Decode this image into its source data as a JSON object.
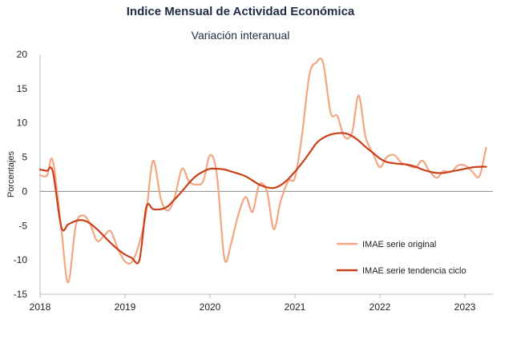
{
  "chart_data": {
    "type": "line",
    "title": "Indice Mensual de  Actividad Económica",
    "subtitle": "Variación interanual",
    "ylabel": "Porcentajes",
    "xlabel": "",
    "ylim": [
      -15,
      20
    ],
    "yticks": [
      20,
      15,
      10,
      5,
      0,
      -5,
      -10,
      -15
    ],
    "xlim": [
      2018,
      2023.33
    ],
    "xticks": [
      2018,
      2019,
      2020,
      2021,
      2022,
      2023
    ],
    "grid": false,
    "legend_position": "bottom-right",
    "series": [
      {
        "name": "IMAE serie original",
        "color": "#f4a582",
        "points": [
          [
            2018.0,
            2.4
          ],
          [
            2018.08,
            2.3
          ],
          [
            2018.15,
            4.5
          ],
          [
            2018.25,
            -5.5
          ],
          [
            2018.33,
            -13.3
          ],
          [
            2018.42,
            -5.0
          ],
          [
            2018.5,
            -3.5
          ],
          [
            2018.58,
            -4.5
          ],
          [
            2018.67,
            -7.2
          ],
          [
            2018.75,
            -6.5
          ],
          [
            2018.83,
            -5.8
          ],
          [
            2018.92,
            -8.5
          ],
          [
            2019.0,
            -10.2
          ],
          [
            2019.08,
            -10.3
          ],
          [
            2019.17,
            -7.5
          ],
          [
            2019.25,
            -3.0
          ],
          [
            2019.33,
            4.5
          ],
          [
            2019.42,
            -1.0
          ],
          [
            2019.5,
            -2.8
          ],
          [
            2019.58,
            -1.0
          ],
          [
            2019.67,
            3.3
          ],
          [
            2019.75,
            1.5
          ],
          [
            2019.83,
            1.0
          ],
          [
            2019.92,
            1.5
          ],
          [
            2020.0,
            5.3
          ],
          [
            2020.08,
            2.5
          ],
          [
            2020.17,
            -9.8
          ],
          [
            2020.25,
            -7.5
          ],
          [
            2020.33,
            -3.5
          ],
          [
            2020.42,
            -0.8
          ],
          [
            2020.5,
            -3.0
          ],
          [
            2020.58,
            1.0
          ],
          [
            2020.67,
            0.0
          ],
          [
            2020.75,
            -5.5
          ],
          [
            2020.83,
            -1.5
          ],
          [
            2020.92,
            1.5
          ],
          [
            2021.0,
            2.0
          ],
          [
            2021.08,
            8.0
          ],
          [
            2021.17,
            17.0
          ],
          [
            2021.25,
            18.8
          ],
          [
            2021.33,
            18.8
          ],
          [
            2021.42,
            11.5
          ],
          [
            2021.5,
            11.0
          ],
          [
            2021.58,
            8.0
          ],
          [
            2021.67,
            8.5
          ],
          [
            2021.75,
            14.0
          ],
          [
            2021.83,
            8.0
          ],
          [
            2021.92,
            5.5
          ],
          [
            2022.0,
            3.5
          ],
          [
            2022.08,
            5.0
          ],
          [
            2022.17,
            5.3
          ],
          [
            2022.25,
            4.2
          ],
          [
            2022.33,
            3.8
          ],
          [
            2022.42,
            3.5
          ],
          [
            2022.5,
            4.5
          ],
          [
            2022.58,
            3.0
          ],
          [
            2022.67,
            2.0
          ],
          [
            2022.75,
            3.0
          ],
          [
            2022.83,
            2.8
          ],
          [
            2022.92,
            3.8
          ],
          [
            2023.0,
            3.8
          ],
          [
            2023.08,
            3.0
          ],
          [
            2023.17,
            2.2
          ],
          [
            2023.25,
            6.4
          ]
        ]
      },
      {
        "name": "IMAE serie  tendencia ciclo",
        "color": "#c8411a",
        "points": [
          [
            2018.0,
            3.2
          ],
          [
            2018.08,
            3.0
          ],
          [
            2018.15,
            2.9
          ],
          [
            2018.25,
            -5.2
          ],
          [
            2018.33,
            -4.8
          ],
          [
            2018.42,
            -4.3
          ],
          [
            2018.5,
            -4.2
          ],
          [
            2018.58,
            -4.6
          ],
          [
            2018.67,
            -5.5
          ],
          [
            2018.75,
            -6.5
          ],
          [
            2018.83,
            -7.5
          ],
          [
            2018.92,
            -8.5
          ],
          [
            2019.0,
            -9.2
          ],
          [
            2019.08,
            -9.7
          ],
          [
            2019.17,
            -10.0
          ],
          [
            2019.25,
            -2.3
          ],
          [
            2019.33,
            -2.6
          ],
          [
            2019.42,
            -2.6
          ],
          [
            2019.5,
            -2.2
          ],
          [
            2019.58,
            -1.2
          ],
          [
            2019.67,
            0.0
          ],
          [
            2019.75,
            1.2
          ],
          [
            2019.83,
            2.2
          ],
          [
            2019.92,
            2.9
          ],
          [
            2020.0,
            3.3
          ],
          [
            2020.08,
            3.3
          ],
          [
            2020.17,
            3.2
          ],
          [
            2020.25,
            2.9
          ],
          [
            2020.33,
            2.6
          ],
          [
            2020.42,
            2.2
          ],
          [
            2020.5,
            1.6
          ],
          [
            2020.58,
            1.0
          ],
          [
            2020.67,
            0.6
          ],
          [
            2020.75,
            0.5
          ],
          [
            2020.83,
            0.9
          ],
          [
            2020.92,
            1.8
          ],
          [
            2021.0,
            2.9
          ],
          [
            2021.08,
            4.1
          ],
          [
            2021.17,
            5.6
          ],
          [
            2021.25,
            7.0
          ],
          [
            2021.33,
            7.8
          ],
          [
            2021.42,
            8.3
          ],
          [
            2021.5,
            8.5
          ],
          [
            2021.58,
            8.5
          ],
          [
            2021.67,
            8.1
          ],
          [
            2021.75,
            7.4
          ],
          [
            2021.83,
            6.5
          ],
          [
            2021.92,
            5.6
          ],
          [
            2022.0,
            4.8
          ],
          [
            2022.08,
            4.3
          ],
          [
            2022.17,
            4.1
          ],
          [
            2022.25,
            4.0
          ],
          [
            2022.33,
            3.9
          ],
          [
            2022.42,
            3.6
          ],
          [
            2022.5,
            3.2
          ],
          [
            2022.58,
            2.9
          ],
          [
            2022.67,
            2.7
          ],
          [
            2022.75,
            2.7
          ],
          [
            2022.83,
            2.9
          ],
          [
            2022.92,
            3.1
          ],
          [
            2023.0,
            3.3
          ],
          [
            2023.08,
            3.5
          ],
          [
            2023.17,
            3.6
          ],
          [
            2023.25,
            3.6
          ]
        ]
      }
    ]
  }
}
